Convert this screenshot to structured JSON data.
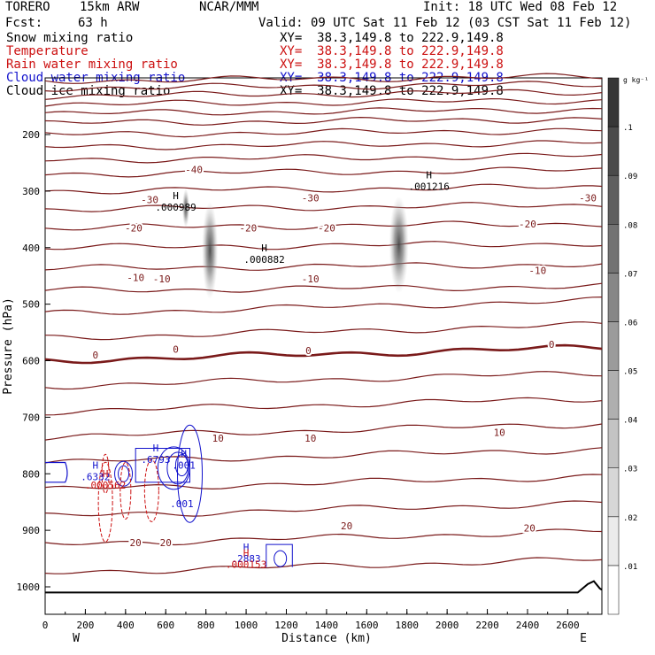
{
  "header": {
    "model": "TORERO",
    "resolution": "15km ARW",
    "center": "NCAR/MMM",
    "init": "Init: 18 UTC Wed 08 Feb 12",
    "fcst_label": "Fcst:",
    "fcst_value": "63 h",
    "valid": "Valid: 09 UTC Sat 11 Feb 12 (03 CST Sat 11 Feb 12)"
  },
  "fields": [
    {
      "name": "Snow mixing ratio",
      "xy": "XY=  38.3,149.8 to 222.9,149.8",
      "color": "#000000"
    },
    {
      "name": "Temperature",
      "xy": "XY=  38.3,149.8 to 222.9,149.8",
      "color": "#cc1111"
    },
    {
      "name": "Rain water mixing ratio",
      "xy": "XY=  38.3,149.8 to 222.9,149.8",
      "color": "#cc1111"
    },
    {
      "name": "Cloud water mixing ratio",
      "xy": "XY=  38.3,149.8 to 222.9,149.8",
      "color": "#1111cc"
    },
    {
      "name": "Cloud ice mixing ratio",
      "xy": "XY=  38.3,149.8 to 222.9,149.8",
      "color": "#000000"
    }
  ],
  "chart_data": {
    "type": "contour",
    "xlabel": "Distance (km)",
    "ylabel": "Pressure (hPa)",
    "xlim": [
      0,
      2770
    ],
    "ylim": [
      1050,
      100
    ],
    "x_ticks": [
      0,
      200,
      400,
      600,
      800,
      1000,
      1200,
      1400,
      1600,
      1800,
      2000,
      2200,
      2400,
      2600
    ],
    "y_ticks": [
      200,
      300,
      400,
      500,
      600,
      700,
      800,
      900,
      1000
    ],
    "x_end_labels": {
      "left": "W",
      "right": "E"
    },
    "colorbar": {
      "unit": "g kg⁻¹",
      "ticks": [
        ".1",
        ".09",
        ".08",
        ".07",
        ".06",
        ".05",
        ".04",
        ".03",
        ".02",
        ".01"
      ]
    },
    "temperature_labels": [
      {
        "text": "-40",
        "x": 740,
        "p": 262
      },
      {
        "text": "-30",
        "x": 520,
        "p": 315
      },
      {
        "text": "-30",
        "x": 1320,
        "p": 312
      },
      {
        "text": "-30",
        "x": 2700,
        "p": 312
      },
      {
        "text": "-20",
        "x": 440,
        "p": 365
      },
      {
        "text": "-20",
        "x": 1010,
        "p": 365
      },
      {
        "text": "-20",
        "x": 1400,
        "p": 365
      },
      {
        "text": "-20",
        "x": 2400,
        "p": 358
      },
      {
        "text": "-10",
        "x": 450,
        "p": 453
      },
      {
        "text": "-10",
        "x": 580,
        "p": 455
      },
      {
        "text": "-10",
        "x": 1320,
        "p": 455
      },
      {
        "text": "-10",
        "x": 2450,
        "p": 440
      },
      {
        "text": "0",
        "x": 250,
        "p": 590
      },
      {
        "text": "0",
        "x": 650,
        "p": 580
      },
      {
        "text": "0",
        "x": 1310,
        "p": 582
      },
      {
        "text": "0",
        "x": 2520,
        "p": 571
      },
      {
        "text": "10",
        "x": 860,
        "p": 737
      },
      {
        "text": "10",
        "x": 1320,
        "p": 737
      },
      {
        "text": "10",
        "x": 2260,
        "p": 727
      },
      {
        "text": "20",
        "x": 450,
        "p": 922
      },
      {
        "text": "20",
        "x": 600,
        "p": 922
      },
      {
        "text": "20",
        "x": 1500,
        "p": 892
      },
      {
        "text": "20",
        "x": 2410,
        "p": 896
      }
    ],
    "extrema_labels": [
      {
        "text": "H",
        "value": ".000989",
        "x": 650,
        "p": 324,
        "color": "#000000"
      },
      {
        "text": "H",
        "value": ".000882",
        "x": 1090,
        "p": 416,
        "color": "#000000"
      },
      {
        "text": "H",
        "value": ".001216",
        "x": 1910,
        "p": 287,
        "color": "#000000"
      },
      {
        "text": "H",
        "value": ".6332",
        "x": 250,
        "p": 800,
        "color": "#1111cc"
      },
      {
        "text": "H",
        "value": ".000562",
        "x": 300,
        "p": 815,
        "color": "#cc1111"
      },
      {
        "text": "H",
        "value": ".6793",
        "x": 550,
        "p": 770,
        "color": "#1111cc"
      },
      {
        "text": "H",
        "value": ".001",
        "x": 690,
        "p": 780,
        "color": "#1111cc"
      },
      {
        "text": "H",
        "value": ".2883",
        "x": 1000,
        "p": 945,
        "color": "#1111cc"
      },
      {
        "text": "H",
        "value": ".000153",
        "x": 1000,
        "p": 955,
        "color": "#cc1111"
      }
    ],
    "extra_value_labels": [
      {
        "text": ".001",
        "x": 680,
        "p": 853,
        "color": "#1111cc"
      }
    ]
  }
}
